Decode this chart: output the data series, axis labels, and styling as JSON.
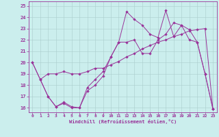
{
  "xlabel": "Windchill (Refroidissement éolien,°C)",
  "bg_color": "#cbeeed",
  "line_color": "#993399",
  "grid_color": "#aacccc",
  "xlim": [
    -0.5,
    23.5
  ],
  "ylim": [
    15.6,
    25.4
  ],
  "xticks": [
    0,
    1,
    2,
    3,
    4,
    5,
    6,
    7,
    8,
    9,
    10,
    11,
    12,
    13,
    14,
    15,
    16,
    17,
    18,
    19,
    20,
    21,
    22,
    23
  ],
  "yticks": [
    16,
    17,
    18,
    19,
    20,
    21,
    22,
    23,
    24,
    25
  ],
  "line1_x": [
    0,
    1,
    2,
    3,
    4,
    5,
    6,
    7,
    8,
    9,
    10,
    11,
    12,
    13,
    14,
    15,
    16,
    17,
    18,
    19,
    20,
    21,
    22,
    23
  ],
  "line1_y": [
    20.0,
    18.5,
    17.0,
    16.1,
    16.4,
    16.0,
    16.0,
    17.5,
    18.0,
    18.8,
    20.5,
    21.8,
    24.5,
    23.8,
    23.3,
    22.5,
    22.2,
    24.6,
    22.3,
    23.3,
    22.0,
    21.8,
    19.0,
    15.9
  ],
  "line2_x": [
    0,
    1,
    2,
    3,
    4,
    5,
    6,
    7,
    8,
    9,
    10,
    11,
    12,
    13,
    14,
    15,
    16,
    17,
    18,
    19,
    20,
    21,
    22,
    23
  ],
  "line2_y": [
    20.0,
    18.5,
    17.0,
    16.1,
    16.5,
    16.1,
    16.0,
    17.8,
    18.5,
    19.2,
    20.5,
    21.8,
    21.8,
    22.0,
    20.8,
    20.8,
    22.0,
    22.5,
    23.5,
    23.3,
    22.9,
    21.8,
    19.0,
    15.9
  ],
  "line3_x": [
    1,
    2,
    3,
    4,
    5,
    6,
    7,
    8,
    9,
    10,
    11,
    12,
    13,
    14,
    15,
    16,
    17,
    18,
    19,
    20,
    21,
    22,
    23
  ],
  "line3_y": [
    18.5,
    19.0,
    19.0,
    19.2,
    19.0,
    19.0,
    19.2,
    19.5,
    19.5,
    19.8,
    20.1,
    20.5,
    20.8,
    21.2,
    21.5,
    21.8,
    22.0,
    22.3,
    22.5,
    22.8,
    22.9,
    23.0,
    15.9
  ],
  "line4_x": [
    0,
    6,
    23
  ],
  "line4_y": [
    20.0,
    16.0,
    16.0
  ]
}
